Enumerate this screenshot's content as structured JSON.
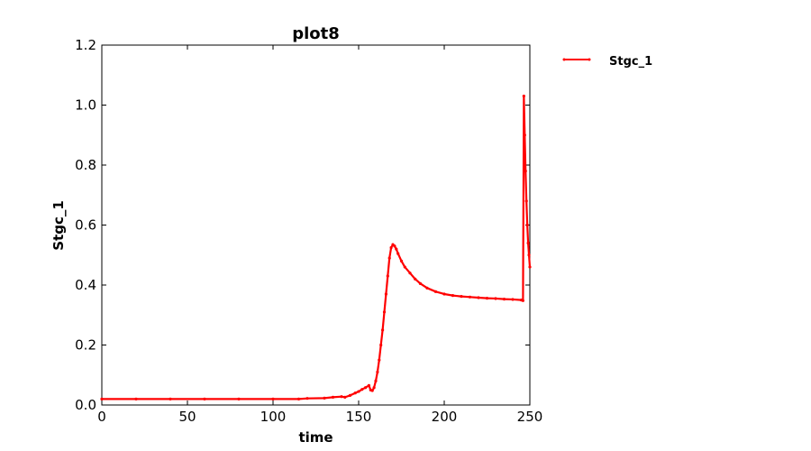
{
  "chart_data": {
    "type": "line",
    "title": "plot8",
    "xlabel": "time",
    "ylabel": "Stgc_1",
    "xlim": [
      0,
      250
    ],
    "ylim": [
      0,
      1.2
    ],
    "xticks": [
      "0",
      "50",
      "100",
      "150",
      "200",
      "250"
    ],
    "yticks": [
      "0.0",
      "0.2",
      "0.4",
      "0.6",
      "0.8",
      "1.0",
      "1.2"
    ],
    "grid": false,
    "legend_position": "outside-right-top",
    "series": [
      {
        "name": "Stgc_1",
        "color": "#ff0000",
        "marker": "dot",
        "x": [
          0,
          20,
          40,
          60,
          80,
          100,
          115,
          120,
          130,
          135,
          140,
          142,
          145,
          148,
          150,
          152,
          154,
          156,
          157,
          158,
          159,
          160,
          161,
          162,
          163,
          164,
          165,
          166,
          167,
          168,
          169,
          170,
          171,
          172,
          173,
          175,
          177,
          180,
          183,
          186,
          190,
          195,
          200,
          205,
          210,
          215,
          220,
          225,
          230,
          235,
          240,
          245,
          246,
          246.5,
          247,
          247.5,
          248,
          248.5,
          249,
          249.5,
          250
        ],
        "y": [
          0.02,
          0.02,
          0.02,
          0.02,
          0.02,
          0.02,
          0.02,
          0.022,
          0.023,
          0.026,
          0.028,
          0.026,
          0.032,
          0.04,
          0.045,
          0.052,
          0.058,
          0.065,
          0.05,
          0.048,
          0.058,
          0.08,
          0.11,
          0.15,
          0.2,
          0.25,
          0.31,
          0.37,
          0.43,
          0.49,
          0.525,
          0.535,
          0.53,
          0.52,
          0.505,
          0.48,
          0.46,
          0.44,
          0.42,
          0.405,
          0.39,
          0.378,
          0.37,
          0.365,
          0.362,
          0.36,
          0.358,
          0.356,
          0.355,
          0.353,
          0.352,
          0.35,
          0.348,
          1.03,
          0.9,
          0.78,
          0.68,
          0.6,
          0.54,
          0.5,
          0.46
        ]
      }
    ]
  }
}
